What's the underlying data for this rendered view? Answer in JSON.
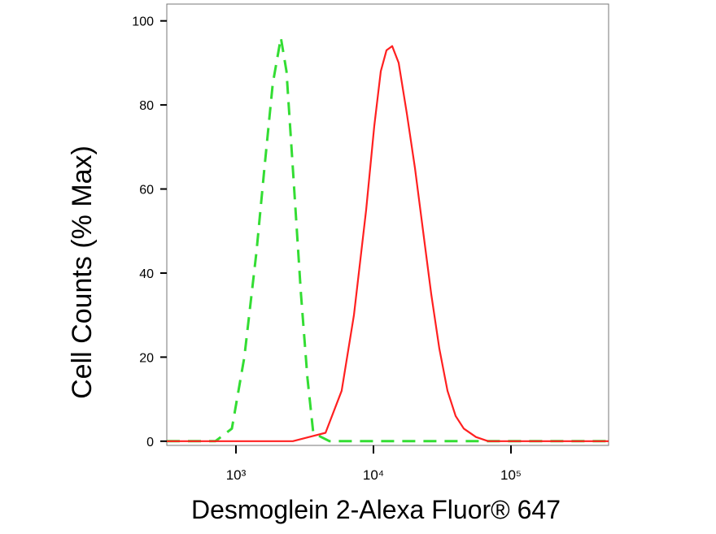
{
  "chart_data": {
    "type": "line",
    "x_label": "Desmoglein 2-Alexa Fluor® 647",
    "y_label": "Cell Counts (% Max)",
    "xscale": "log",
    "xlim": [
      314,
      513000
    ],
    "ylim": [
      -1,
      104
    ],
    "xticks": [
      {
        "value": 1000,
        "label": "10³"
      },
      {
        "value": 10000,
        "label": "10⁴"
      },
      {
        "value": 100000,
        "label": "10⁵"
      }
    ],
    "yticks": [
      0,
      20,
      40,
      60,
      80,
      100
    ],
    "series": [
      {
        "color": "#33dd33",
        "style": "dashed",
        "x": [
          314,
          708,
          934,
          1150,
          1410,
          1610,
          1850,
          2120,
          2330,
          2590,
          2970,
          3310,
          3650,
          4170,
          4790,
          513000
        ],
        "values": [
          0,
          0,
          3,
          20,
          45,
          65,
          85,
          96,
          88,
          65,
          35,
          15,
          2,
          1,
          0,
          0
        ]
      },
      {
        "color": "#ff2020",
        "style": "solid",
        "x": [
          314,
          2590,
          4480,
          5870,
          7210,
          8850,
          10140,
          11300,
          12440,
          13680,
          15250,
          17490,
          20030,
          22970,
          26310,
          30150,
          34530,
          39590,
          45360,
          55670,
          68290,
          513000
        ],
        "values": [
          0,
          0,
          2,
          12,
          30,
          55,
          75,
          88,
          93,
          94,
          90,
          78,
          65,
          50,
          35,
          22,
          12,
          6,
          3,
          1,
          0,
          0
        ]
      }
    ]
  }
}
